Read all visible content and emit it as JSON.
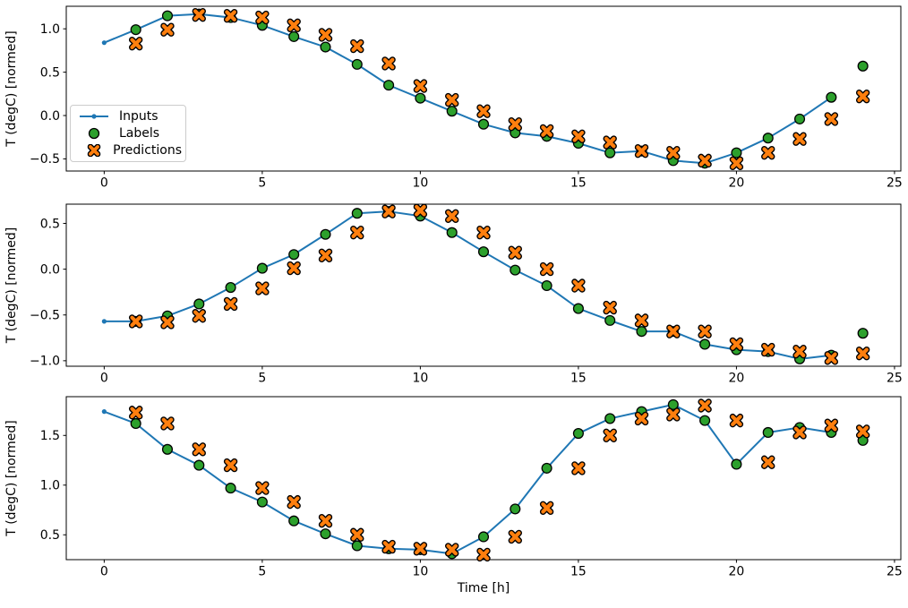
{
  "figure": {
    "xlabel": "Time [h]",
    "ylabel": "T (degC) [normed]",
    "background": "#ffffff",
    "colors": {
      "inputs": "#1f77b4",
      "labels": "#2ca02c",
      "predictions": "#ff7f0e",
      "marker_edge": "#000000",
      "spine": "#000000",
      "text": "#000000",
      "legend_border": "#cccccc"
    },
    "legend": {
      "position": "upper left of first subplot",
      "entries": [
        {
          "label": "Inputs",
          "marker": "line-with-dot"
        },
        {
          "label": "Labels",
          "marker": "filled-circle"
        },
        {
          "label": "Predictions",
          "marker": "filled-x"
        }
      ]
    }
  },
  "chart_data": [
    {
      "type": "line",
      "subplot": 1,
      "title": "",
      "xlabel": "",
      "ylabel": "T (degC) [normed]",
      "grid": false,
      "xlim": [
        -1.2,
        25.2
      ],
      "ylim": [
        -0.64,
        1.26
      ],
      "x_ticks": [
        0,
        5,
        10,
        15,
        20,
        25
      ],
      "x_tick_labels": [
        "0",
        "5",
        "10",
        "15",
        "20",
        "25"
      ],
      "y_ticks": [
        1.0,
        0.5,
        0.0,
        -0.5
      ],
      "y_tick_labels": [
        "1.0",
        "0.5",
        "0.0",
        "−0.5"
      ],
      "series": [
        {
          "name": "Inputs",
          "style": "line-with-dot-markers",
          "color": "#1f77b4",
          "x": [
            0,
            1,
            2,
            3,
            4,
            5,
            6,
            7,
            8,
            9,
            10,
            11,
            12,
            13,
            14,
            15,
            16,
            17,
            18,
            19,
            20,
            21,
            22,
            23
          ],
          "y": [
            0.84,
            0.99,
            1.15,
            1.17,
            1.13,
            1.04,
            0.91,
            0.79,
            0.59,
            0.35,
            0.2,
            0.05,
            -0.1,
            -0.2,
            -0.24,
            -0.32,
            -0.43,
            -0.41,
            -0.52,
            -0.55,
            -0.43,
            -0.26,
            -0.04,
            0.21
          ]
        },
        {
          "name": "Labels",
          "style": "scatter-circle",
          "color": "#2ca02c",
          "edge": "#000000",
          "x": [
            1,
            2,
            3,
            4,
            5,
            6,
            7,
            8,
            9,
            10,
            11,
            12,
            13,
            14,
            15,
            16,
            17,
            18,
            19,
            20,
            21,
            22,
            23,
            24
          ],
          "y": [
            0.99,
            1.15,
            1.17,
            1.13,
            1.04,
            0.91,
            0.79,
            0.59,
            0.35,
            0.2,
            0.05,
            -0.1,
            -0.2,
            -0.24,
            -0.32,
            -0.43,
            -0.41,
            -0.52,
            -0.55,
            -0.43,
            -0.26,
            -0.04,
            0.21,
            0.57
          ]
        },
        {
          "name": "Predictions",
          "style": "scatter-x",
          "color": "#ff7f0e",
          "edge": "#000000",
          "x": [
            1,
            2,
            3,
            4,
            5,
            6,
            7,
            8,
            9,
            10,
            11,
            12,
            13,
            14,
            15,
            16,
            17,
            18,
            19,
            20,
            21,
            22,
            23,
            24
          ],
          "y": [
            0.83,
            0.99,
            1.16,
            1.15,
            1.13,
            1.04,
            0.93,
            0.8,
            0.6,
            0.34,
            0.18,
            0.05,
            -0.1,
            -0.18,
            -0.24,
            -0.31,
            -0.41,
            -0.43,
            -0.52,
            -0.55,
            -0.43,
            -0.27,
            -0.04,
            0.22
          ]
        }
      ]
    },
    {
      "type": "line",
      "subplot": 2,
      "title": "",
      "xlabel": "",
      "ylabel": "T (degC) [normed]",
      "grid": false,
      "xlim": [
        -1.2,
        25.2
      ],
      "ylim": [
        -1.06,
        0.71
      ],
      "x_ticks": [
        0,
        5,
        10,
        15,
        20,
        25
      ],
      "x_tick_labels": [
        "0",
        "5",
        "10",
        "15",
        "20",
        "25"
      ],
      "y_ticks": [
        0.5,
        0.0,
        -0.5,
        -1.0
      ],
      "y_tick_labels": [
        "0.5",
        "0.0",
        "−0.5",
        "−1.0"
      ],
      "series": [
        {
          "name": "Inputs",
          "style": "line-with-dot-markers",
          "color": "#1f77b4",
          "x": [
            0,
            1,
            2,
            3,
            4,
            5,
            6,
            7,
            8,
            9,
            10,
            11,
            12,
            13,
            14,
            15,
            16,
            17,
            18,
            19,
            20,
            21,
            22,
            23
          ],
          "y": [
            -0.57,
            -0.57,
            -0.51,
            -0.38,
            -0.2,
            0.01,
            0.16,
            0.38,
            0.61,
            0.63,
            0.58,
            0.4,
            0.19,
            -0.01,
            -0.18,
            -0.43,
            -0.56,
            -0.68,
            -0.68,
            -0.82,
            -0.88,
            -0.9,
            -0.98,
            -0.94
          ]
        },
        {
          "name": "Labels",
          "style": "scatter-circle",
          "color": "#2ca02c",
          "edge": "#000000",
          "x": [
            1,
            2,
            3,
            4,
            5,
            6,
            7,
            8,
            9,
            10,
            11,
            12,
            13,
            14,
            15,
            16,
            17,
            18,
            19,
            20,
            21,
            22,
            23,
            24
          ],
          "y": [
            -0.57,
            -0.51,
            -0.38,
            -0.2,
            0.01,
            0.16,
            0.38,
            0.61,
            0.63,
            0.58,
            0.4,
            0.19,
            -0.01,
            -0.18,
            -0.43,
            -0.56,
            -0.68,
            -0.68,
            -0.82,
            -0.88,
            -0.9,
            -0.98,
            -0.94,
            -0.7
          ]
        },
        {
          "name": "Predictions",
          "style": "scatter-x",
          "color": "#ff7f0e",
          "edge": "#000000",
          "x": [
            1,
            2,
            3,
            4,
            5,
            6,
            7,
            8,
            9,
            10,
            11,
            12,
            13,
            14,
            15,
            16,
            17,
            18,
            19,
            20,
            21,
            22,
            23,
            24
          ],
          "y": [
            -0.57,
            -0.58,
            -0.51,
            -0.38,
            -0.21,
            0.01,
            0.15,
            0.4,
            0.63,
            0.64,
            0.58,
            0.4,
            0.18,
            0.0,
            -0.18,
            -0.42,
            -0.56,
            -0.68,
            -0.68,
            -0.82,
            -0.88,
            -0.9,
            -0.97,
            -0.92
          ]
        }
      ]
    },
    {
      "type": "line",
      "subplot": 3,
      "title": "",
      "xlabel": "Time [h]",
      "ylabel": "T (degC) [normed]",
      "grid": false,
      "xlim": [
        -1.2,
        25.2
      ],
      "ylim": [
        0.25,
        1.89
      ],
      "x_ticks": [
        0,
        5,
        10,
        15,
        20,
        25
      ],
      "x_tick_labels": [
        "0",
        "5",
        "10",
        "15",
        "20",
        "25"
      ],
      "y_ticks": [
        1.5,
        1.0,
        0.5
      ],
      "y_tick_labels": [
        "1.5",
        "1.0",
        "0.5"
      ],
      "series": [
        {
          "name": "Inputs",
          "style": "line-with-dot-markers",
          "color": "#1f77b4",
          "x": [
            0,
            1,
            2,
            3,
            4,
            5,
            6,
            7,
            8,
            9,
            10,
            11,
            12,
            13,
            14,
            15,
            16,
            17,
            18,
            19,
            20,
            21,
            22,
            23
          ],
          "y": [
            1.74,
            1.62,
            1.36,
            1.2,
            0.97,
            0.83,
            0.64,
            0.51,
            0.39,
            0.36,
            0.35,
            0.31,
            0.48,
            0.76,
            1.17,
            1.52,
            1.67,
            1.74,
            1.81,
            1.65,
            1.21,
            1.53,
            1.58,
            1.53
          ]
        },
        {
          "name": "Labels",
          "style": "scatter-circle",
          "color": "#2ca02c",
          "edge": "#000000",
          "x": [
            1,
            2,
            3,
            4,
            5,
            6,
            7,
            8,
            9,
            10,
            11,
            12,
            13,
            14,
            15,
            16,
            17,
            18,
            19,
            20,
            21,
            22,
            23,
            24
          ],
          "y": [
            1.62,
            1.36,
            1.2,
            0.97,
            0.83,
            0.64,
            0.51,
            0.39,
            0.36,
            0.35,
            0.31,
            0.48,
            0.76,
            1.17,
            1.52,
            1.67,
            1.74,
            1.81,
            1.65,
            1.21,
            1.53,
            1.58,
            1.53,
            1.45
          ]
        },
        {
          "name": "Predictions",
          "style": "scatter-x",
          "color": "#ff7f0e",
          "edge": "#000000",
          "x": [
            1,
            2,
            3,
            4,
            5,
            6,
            7,
            8,
            9,
            10,
            11,
            12,
            13,
            14,
            15,
            16,
            17,
            18,
            19,
            20,
            21,
            22,
            23,
            24
          ],
          "y": [
            1.73,
            1.62,
            1.36,
            1.2,
            0.97,
            0.83,
            0.64,
            0.5,
            0.38,
            0.36,
            0.35,
            0.3,
            0.48,
            0.77,
            1.17,
            1.5,
            1.67,
            1.71,
            1.8,
            1.65,
            1.23,
            1.53,
            1.6,
            1.54
          ]
        }
      ]
    }
  ]
}
